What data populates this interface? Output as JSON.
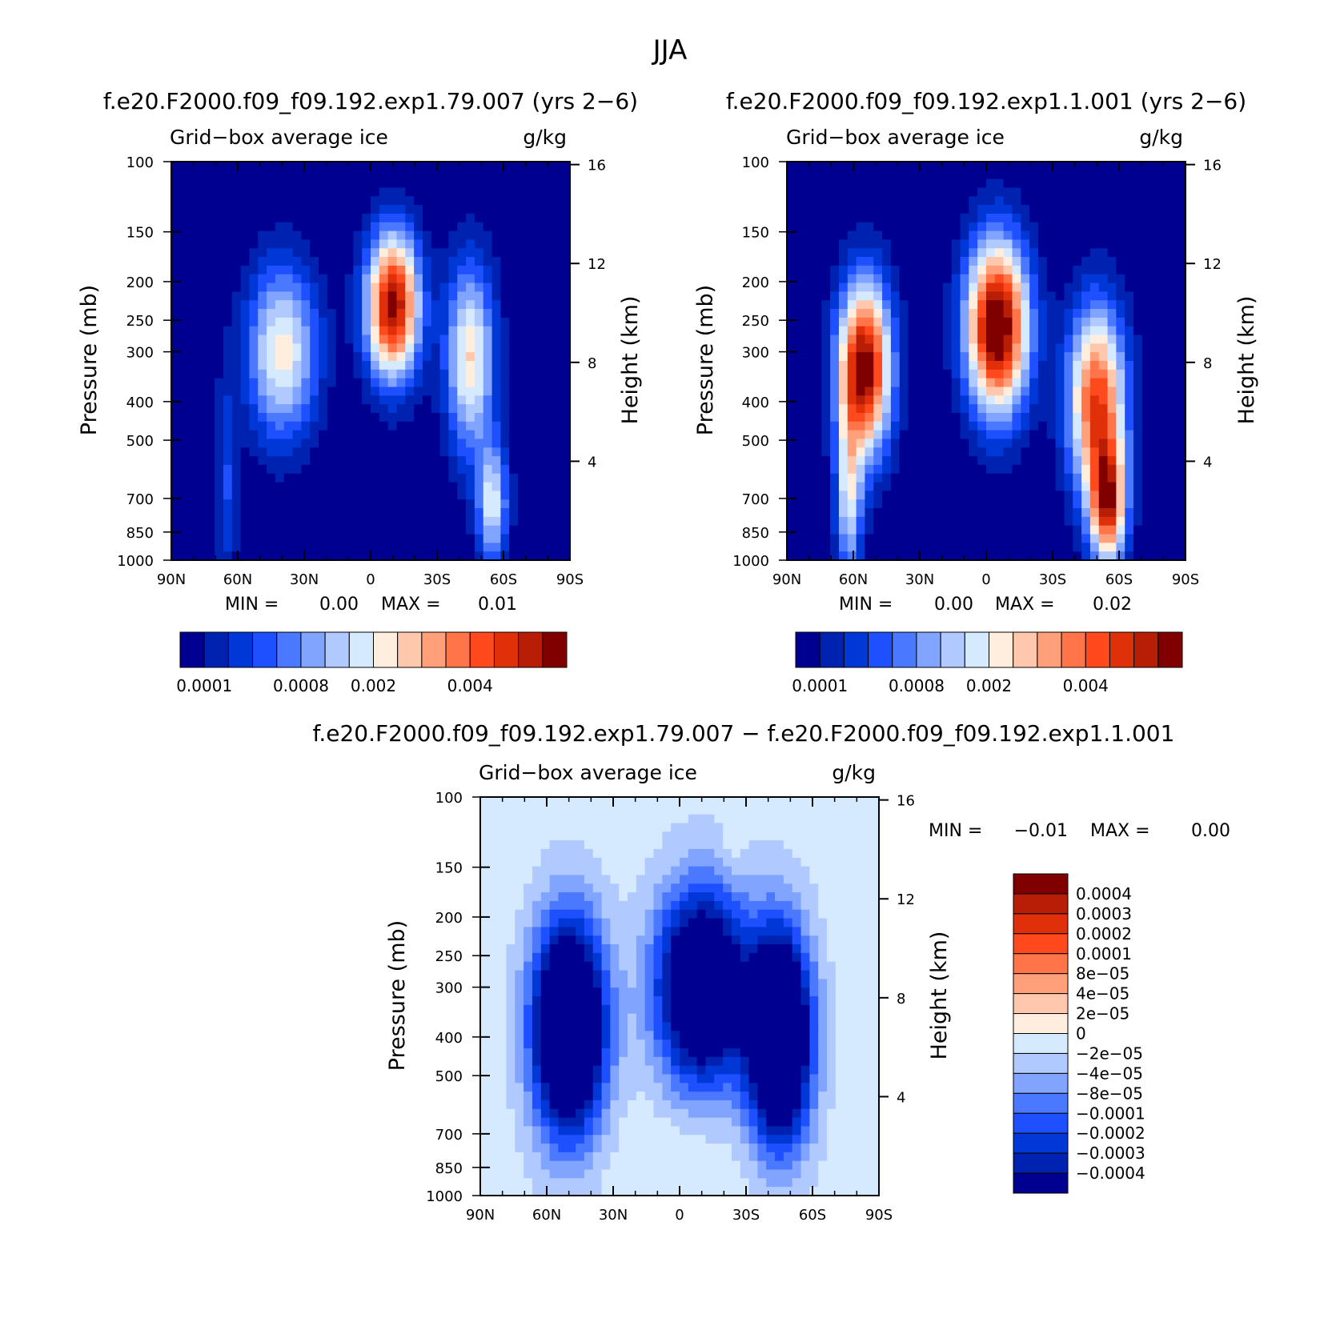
{
  "figure_title": "JJA",
  "palette": [
    "#000090",
    "#0022b0",
    "#0038d8",
    "#1e50ff",
    "#4a78ff",
    "#80a4ff",
    "#b0caff",
    "#d6eaff",
    "#ffeedd",
    "#ffc8ac",
    "#ffa07a",
    "#ff7448",
    "#ff4a1e",
    "#e0300a",
    "#b81e06",
    "#800000"
  ],
  "diff_palette": [
    "#000090",
    "#0022b0",
    "#0038d8",
    "#1e50ff",
    "#4a78ff",
    "#80a4ff",
    "#b0caff",
    "#d6eaff",
    "#ffeedd",
    "#ffc8ac",
    "#ffa07a",
    "#ff7448",
    "#ff4a1e",
    "#e0300a",
    "#b81e06",
    "#800000"
  ],
  "chart_data": [
    {
      "id": "panel1",
      "type": "heatmap",
      "title": "f.e20.F2000.f09_f09.192.exp1.79.007 (yrs 2−6)",
      "left_label": "Grid−box average ice",
      "right_label": "g/kg",
      "ylabel": "Pressure (mb)",
      "y2label": "Height (km)",
      "xticks": [
        "90N",
        "60N",
        "30N",
        "0",
        "30S",
        "60S",
        "90S"
      ],
      "yticks": [
        "100",
        "150",
        "200",
        "250",
        "300",
        "400",
        "500",
        "700",
        "850",
        "1000"
      ],
      "y2ticks": [
        "16",
        "12",
        "8",
        "4"
      ],
      "min_label": "MIN =",
      "min_value": "0.00",
      "max_label": "MAX =",
      "max_value": "0.01",
      "colorbar_labels": [
        "0.0001",
        "0.0008",
        "0.002",
        "0.004"
      ],
      "features": [
        {
          "lat": -10,
          "p": 230,
          "amp": 15.5,
          "slat": 12,
          "sp": 0.42
        },
        {
          "lat": -45,
          "p": 310,
          "amp": 9.0,
          "slat": 11,
          "sp": 0.55
        },
        {
          "lat": -55,
          "p": 720,
          "amp": 7.5,
          "slat": 7,
          "sp": 0.35
        },
        {
          "lat": 40,
          "p": 300,
          "amp": 8.5,
          "slat": 16,
          "sp": 0.5
        },
        {
          "lat": 65,
          "p": 650,
          "amp": 3.0,
          "slat": 5,
          "sp": 0.6
        }
      ]
    },
    {
      "id": "panel2",
      "type": "heatmap",
      "title": "f.e20.F2000.f09_f09.192.exp1.1.001 (yrs 2−6)",
      "left_label": "Grid−box average ice",
      "right_label": "g/kg",
      "ylabel": "Pressure (mb)",
      "y2label": "Height (km)",
      "xticks": [
        "90N",
        "60N",
        "30N",
        "0",
        "30S",
        "60S",
        "90S"
      ],
      "yticks": [
        "100",
        "150",
        "200",
        "250",
        "300",
        "400",
        "500",
        "700",
        "850",
        "1000"
      ],
      "y2ticks": [
        "16",
        "12",
        "8",
        "4"
      ],
      "min_label": "MIN =",
      "min_value": "0.00",
      "max_label": "MAX =",
      "max_value": "0.02",
      "colorbar_labels": [
        "0.0001",
        "0.0008",
        "0.002",
        "0.004"
      ],
      "features": [
        {
          "lat": -5,
          "p": 260,
          "amp": 17.0,
          "slat": 14,
          "sp": 0.5
        },
        {
          "lat": 55,
          "p": 330,
          "amp": 16.0,
          "slat": 12,
          "sp": 0.5
        },
        {
          "lat": -50,
          "p": 400,
          "amp": 13.0,
          "slat": 13,
          "sp": 0.55
        },
        {
          "lat": -55,
          "p": 730,
          "amp": 12.5,
          "slat": 8,
          "sp": 0.35
        },
        {
          "lat": 62,
          "p": 700,
          "amp": 7.0,
          "slat": 6,
          "sp": 0.5
        }
      ]
    },
    {
      "id": "panel3",
      "type": "heatmap",
      "title": "f.e20.F2000.f09_f09.192.exp1.79.007 − f.e20.F2000.f09_f09.192.exp1.1.001",
      "left_label": "Grid−box average ice",
      "right_label": "g/kg",
      "ylabel": "Pressure (mb)",
      "y2label": "Height (km)",
      "xticks": [
        "90N",
        "60N",
        "30N",
        "0",
        "30S",
        "60S",
        "90S"
      ],
      "yticks": [
        "100",
        "150",
        "200",
        "250",
        "300",
        "400",
        "500",
        "700",
        "850",
        "1000"
      ],
      "y2ticks": [
        "16",
        "12",
        "8",
        "4"
      ],
      "min_label": "MIN =",
      "min_value": "−0.01",
      "max_label": "MAX =",
      "max_value": "0.00",
      "colorbar_labels": [
        "0.0004",
        "0.0003",
        "0.0002",
        "0.0001",
        "8e−05",
        "4e−05",
        "2e−05",
        "0",
        "−2e−05",
        "−4e−05",
        "−8e−05",
        "−0.0001",
        "−0.0002",
        "−0.0003",
        "−0.0004"
      ],
      "features": [
        {
          "lat": -45,
          "p": 400,
          "amp": -14.0,
          "slat": 14,
          "sp": 0.6
        },
        {
          "lat": 50,
          "p": 380,
          "amp": -14.0,
          "slat": 16,
          "sp": 0.6
        },
        {
          "lat": -10,
          "p": 300,
          "amp": -12.0,
          "slat": 20,
          "sp": 0.55
        },
        {
          "lat": 0,
          "p": 850,
          "amp": 0.6,
          "slat": 30,
          "sp": 0.4
        },
        {
          "lat": -25,
          "p": 130,
          "amp": 1.0,
          "slat": 4,
          "sp": 0.2
        }
      ]
    }
  ]
}
